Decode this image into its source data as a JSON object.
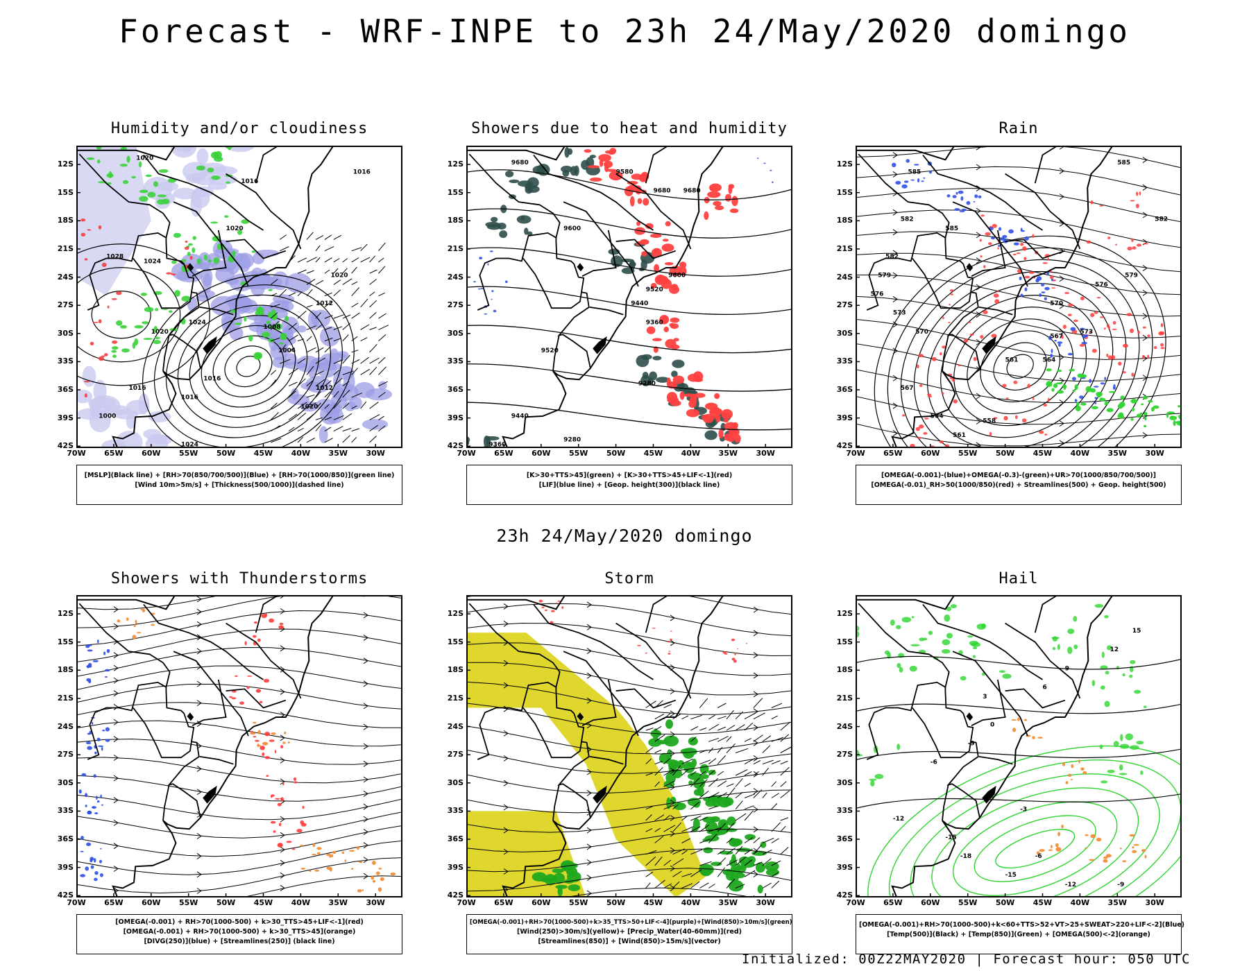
{
  "page": {
    "title": "Forecast - WRF-INPE to 23h 24/May/2020 domingo",
    "subtitle": "23h 24/May/2020 domingo",
    "footer": "Initialized: 00Z22MAY2020 | Forecast hour: 050 UTC"
  },
  "axes": {
    "lat_labels": [
      "12S",
      "15S",
      "18S",
      "21S",
      "24S",
      "27S",
      "30S",
      "33S",
      "36S",
      "39S",
      "42S"
    ],
    "lon_labels": [
      "70W",
      "65W",
      "60W",
      "55W",
      "50W",
      "45W",
      "40W",
      "35W",
      "30W"
    ]
  },
  "panels": [
    {
      "title": "Humidity and/or cloudiness",
      "legend": [
        "[MSLP](Black line) + [RH>70(850/700/500)](Blue) + [RH>70(1000/850)](green line)",
        "[Wind 10m>5m/s] + [Thickness(500/1000)](dashed line)"
      ],
      "contour_labels": [
        "1020",
        "1016",
        "1016",
        "1020",
        "1028",
        "1024",
        "1024",
        "1020",
        "1008",
        "1004",
        "1012",
        "1020",
        "1016",
        "1012",
        "1020",
        "1016",
        "1000",
        "1024",
        "1016"
      ]
    },
    {
      "title": "Showers due to heat and humidity",
      "legend": [
        "[K>30+TTS>45](green) + [K>30+TTS>45+LIF<-1](red)",
        "[LIF](blue line) + [Geop. height(300)](black line)"
      ],
      "contour_labels": [
        "9680",
        "9580",
        "9680",
        "9680",
        "9600",
        "9600",
        "9520",
        "9440",
        "9360",
        "9520",
        "9280",
        "9440",
        "9280",
        "9360"
      ]
    },
    {
      "title": "Rain",
      "legend": [
        "[OMEGA(-0.001)-(blue)+OMEGA(-0.3)-(green)+UR>70(1000/850/700/500)]",
        "[OMEGA(-0.01)_RH>50(1000/850)(red) + Streamlines(500) + Geop. height(500)"
      ],
      "contour_labels": [
        "585",
        "582",
        "582",
        "585",
        "579",
        "576",
        "573",
        "570",
        "567",
        "564",
        "561",
        "558",
        "561",
        "564",
        "567",
        "570",
        "573",
        "576",
        "579",
        "582",
        "585"
      ]
    },
    {
      "title": "Showers with Thunderstorms",
      "legend": [
        "[OMEGA(-0.001) + RH>70(1000-500) + k>30_TTS>45+LIF<-1](red)",
        "[OMEGA(-0.001) + RH>70(1000-500) + k>30_TTS>45](orange)",
        "[DIVG(250)](blue) + [Streamlines(250)] (black line)"
      ],
      "contour_labels": []
    },
    {
      "title": "Storm",
      "legend": [
        "[OMEGA(-0.001)+RH>70(1000-500)+k>35_TTS>50+LIF<-4](purple)+[Wind(850)>10m/s](green)",
        "[Wind(250)>30m/s](yellow)+ [Precip_Water(40-60mm)](red)",
        "[Streamlines(850)] + [Wind(850)>15m/s](vector)"
      ],
      "contour_labels": []
    },
    {
      "title": "Hail",
      "legend": [
        "[OMEGA(-0.001)+RH>70(1000-500)+k<60+TTS>52+VT>25+SWEAT>220+LIF<-2](Blue)",
        "[Temp(500)](Black) + [Temp(850)](Green) + [OMEGA(500)<-2](orange)"
      ],
      "contour_labels": [
        "-6",
        "-9",
        "-12",
        "-15",
        "-18",
        "-15",
        "-12",
        "-9",
        "-6",
        "-3",
        "0",
        "3",
        "6",
        "9",
        "12",
        "15"
      ]
    }
  ]
}
